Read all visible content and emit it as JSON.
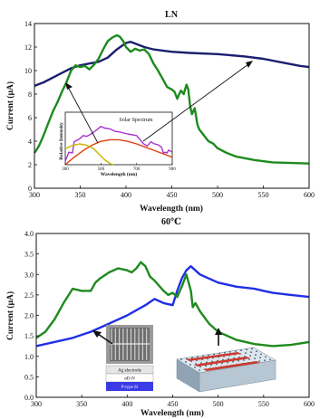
{
  "chart_data": [
    {
      "type": "line",
      "title": "LN",
      "xlabel": "Wavelength (nm)",
      "ylabel": "Current (μA)",
      "xlim": [
        300,
        600
      ],
      "ylim": [
        0,
        14
      ],
      "xticks": [
        300,
        350,
        400,
        450,
        500,
        550,
        600
      ],
      "yticks": [
        0,
        2,
        4,
        6,
        8,
        10,
        12,
        14
      ],
      "series": [
        {
          "color": "#1a1f6e",
          "points": [
            [
              300,
              8.7
            ],
            [
              310,
              9.0
            ],
            [
              320,
              9.4
            ],
            [
              330,
              9.8
            ],
            [
              340,
              10.2
            ],
            [
              350,
              10.45
            ],
            [
              360,
              10.6
            ],
            [
              370,
              10.75
            ],
            [
              380,
              11.1
            ],
            [
              390,
              11.8
            ],
            [
              400,
              12.35
            ],
            [
              405,
              12.45
            ],
            [
              410,
              12.3
            ],
            [
              420,
              12.0
            ],
            [
              430,
              11.8
            ],
            [
              440,
              11.7
            ],
            [
              450,
              11.6
            ],
            [
              470,
              11.5
            ],
            [
              500,
              11.4
            ],
            [
              530,
              11.2
            ],
            [
              550,
              11.0
            ],
            [
              570,
              10.7
            ],
            [
              590,
              10.4
            ],
            [
              600,
              10.3
            ]
          ]
        },
        {
          "color": "#1e8a1e",
          "points": [
            [
              300,
              3.0
            ],
            [
              305,
              3.6
            ],
            [
              310,
              4.5
            ],
            [
              315,
              5.5
            ],
            [
              320,
              6.5
            ],
            [
              325,
              7.3
            ],
            [
              330,
              8.2
            ],
            [
              335,
              9.0
            ],
            [
              340,
              10.0
            ],
            [
              345,
              10.45
            ],
            [
              350,
              10.3
            ],
            [
              355,
              10.4
            ],
            [
              360,
              10.1
            ],
            [
              365,
              10.5
            ],
            [
              370,
              11.0
            ],
            [
              375,
              11.8
            ],
            [
              380,
              12.5
            ],
            [
              385,
              12.8
            ],
            [
              390,
              13.0
            ],
            [
              393,
              12.9
            ],
            [
              397,
              12.5
            ],
            [
              400,
              12.0
            ],
            [
              405,
              11.6
            ],
            [
              410,
              11.85
            ],
            [
              415,
              11.7
            ],
            [
              420,
              11.8
            ],
            [
              425,
              11.4
            ],
            [
              430,
              10.6
            ],
            [
              435,
              10.0
            ],
            [
              440,
              9.3
            ],
            [
              445,
              8.6
            ],
            [
              450,
              8.4
            ],
            [
              453,
              8.2
            ],
            [
              456,
              7.6
            ],
            [
              458,
              8.0
            ],
            [
              460,
              8.3
            ],
            [
              463,
              8.0
            ],
            [
              466,
              8.8
            ],
            [
              468,
              8.4
            ],
            [
              470,
              7.0
            ],
            [
              472,
              6.3
            ],
            [
              475,
              6.8
            ],
            [
              478,
              5.4
            ],
            [
              480,
              5.0
            ],
            [
              485,
              4.5
            ],
            [
              490,
              4.0
            ],
            [
              495,
              3.8
            ],
            [
              500,
              3.4
            ],
            [
              510,
              3.0
            ],
            [
              520,
              2.7
            ],
            [
              540,
              2.4
            ],
            [
              560,
              2.2
            ],
            [
              580,
              2.15
            ],
            [
              600,
              2.1
            ]
          ]
        }
      ],
      "inset": {
        "title": "Solar Spectrum",
        "xlabel": "Wavelength (nm)",
        "ylabel": "Relative Intensity",
        "xlim": [
          300,
          900
        ],
        "xticks": [
          300,
          500,
          700,
          900
        ],
        "series": [
          {
            "color": "#aa33cc",
            "points": [
              [
                300,
                0.08
              ],
              [
                320,
                0.3
              ],
              [
                340,
                0.28
              ],
              [
                350,
                0.55
              ],
              [
                380,
                0.62
              ],
              [
                400,
                0.7
              ],
              [
                420,
                0.68
              ],
              [
                450,
                0.75
              ],
              [
                480,
                0.85
              ],
              [
                500,
                0.92
              ],
              [
                520,
                0.88
              ],
              [
                550,
                0.86
              ],
              [
                580,
                0.8
              ],
              [
                600,
                0.79
              ],
              [
                650,
                0.74
              ],
              [
                700,
                0.7
              ],
              [
                720,
                0.6
              ],
              [
                740,
                0.5
              ],
              [
                760,
                0.45
              ],
              [
                780,
                0.55
              ],
              [
                800,
                0.5
              ],
              [
                820,
                0.48
              ],
              [
                840,
                0.42
              ],
              [
                850,
                0.28
              ],
              [
                860,
                0.3
              ],
              [
                870,
                0.28
              ],
              [
                880,
                0.35
              ],
              [
                900,
                0.3
              ]
            ]
          },
          {
            "color": "#e04010",
            "points": [
              [
                300,
                0.0
              ],
              [
                350,
                0.18
              ],
              [
                400,
                0.34
              ],
              [
                450,
                0.47
              ],
              [
                500,
                0.56
              ],
              [
                550,
                0.6
              ],
              [
                600,
                0.6
              ],
              [
                650,
                0.56
              ],
              [
                700,
                0.5
              ],
              [
                750,
                0.42
              ],
              [
                800,
                0.34
              ],
              [
                850,
                0.26
              ],
              [
                900,
                0.18
              ]
            ]
          },
          {
            "color": "#c8b400",
            "points": [
              [
                300,
                0.38
              ],
              [
                340,
                0.46
              ],
              [
                380,
                0.5
              ],
              [
                420,
                0.47
              ],
              [
                460,
                0.38
              ],
              [
                490,
                0.25
              ],
              [
                520,
                0.12
              ],
              [
                550,
                0.03
              ],
              [
                570,
                0.0
              ]
            ]
          }
        ]
      }
    },
    {
      "type": "line",
      "title": "60℃",
      "xlabel": "Wavelength (nm)",
      "ylabel": "Current (μA)",
      "xlim": [
        300,
        600
      ],
      "ylim": [
        0.0,
        4.0
      ],
      "xticks": [
        300,
        350,
        400,
        450,
        500,
        550,
        600
      ],
      "yticks": [
        0.0,
        0.5,
        1.0,
        1.5,
        2.0,
        2.5,
        3.0,
        3.5,
        4.0
      ],
      "series": [
        {
          "color": "#1f2fe6",
          "points": [
            [
              300,
              1.25
            ],
            [
              320,
              1.35
            ],
            [
              340,
              1.45
            ],
            [
              360,
              1.6
            ],
            [
              380,
              1.8
            ],
            [
              400,
              2.0
            ],
            [
              420,
              2.25
            ],
            [
              430,
              2.4
            ],
            [
              440,
              2.3
            ],
            [
              450,
              2.25
            ],
            [
              455,
              2.6
            ],
            [
              460,
              2.9
            ],
            [
              465,
              3.1
            ],
            [
              470,
              3.2
            ],
            [
              480,
              3.0
            ],
            [
              500,
              2.8
            ],
            [
              520,
              2.7
            ],
            [
              540,
              2.65
            ],
            [
              550,
              2.6
            ],
            [
              560,
              2.55
            ],
            [
              580,
              2.5
            ],
            [
              600,
              2.45
            ]
          ]
        },
        {
          "color": "#1e8a1e",
          "points": [
            [
              300,
              1.45
            ],
            [
              310,
              1.6
            ],
            [
              320,
              1.9
            ],
            [
              330,
              2.3
            ],
            [
              340,
              2.65
            ],
            [
              350,
              2.6
            ],
            [
              360,
              2.6
            ],
            [
              365,
              2.8
            ],
            [
              370,
              2.9
            ],
            [
              380,
              3.05
            ],
            [
              390,
              3.15
            ],
            [
              400,
              3.1
            ],
            [
              405,
              3.05
            ],
            [
              410,
              3.15
            ],
            [
              415,
              3.3
            ],
            [
              420,
              3.2
            ],
            [
              425,
              2.95
            ],
            [
              430,
              2.85
            ],
            [
              440,
              2.6
            ],
            [
              445,
              2.5
            ],
            [
              450,
              2.55
            ],
            [
              455,
              2.45
            ],
            [
              460,
              2.7
            ],
            [
              465,
              3.0
            ],
            [
              470,
              2.6
            ],
            [
              472,
              2.2
            ],
            [
              475,
              2.3
            ],
            [
              480,
              2.1
            ],
            [
              490,
              1.8
            ],
            [
              500,
              1.6
            ],
            [
              520,
              1.4
            ],
            [
              540,
              1.3
            ],
            [
              560,
              1.25
            ],
            [
              580,
              1.28
            ],
            [
              600,
              1.35
            ]
          ]
        }
      ],
      "device_labels": [
        "Ag electrode",
        "αD-N",
        "P-type Si"
      ]
    }
  ]
}
